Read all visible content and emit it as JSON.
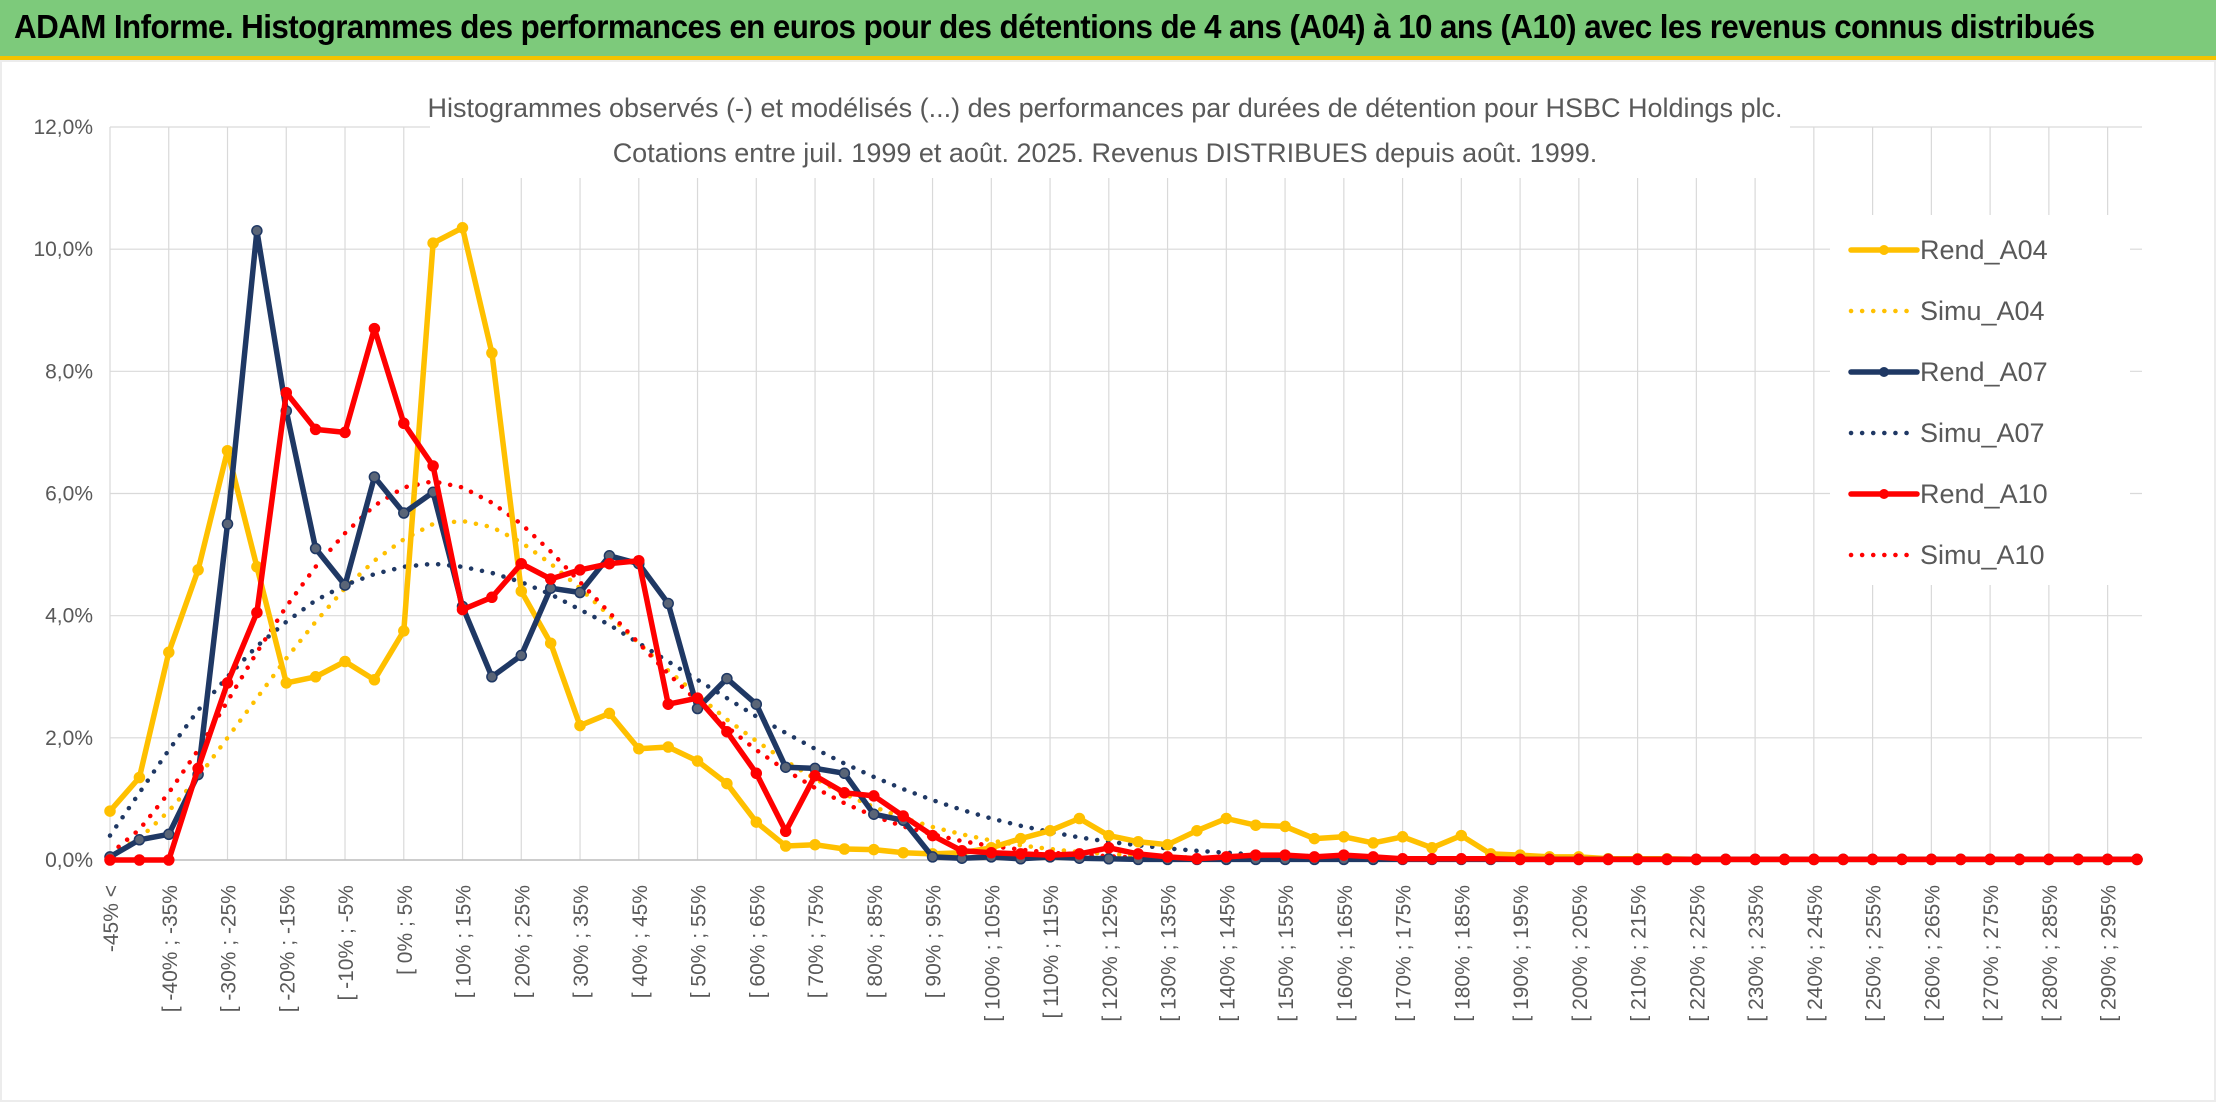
{
  "banner": {
    "title": "ADAM Informe. Histogrammes des performances en euros pour des détentions de 4 ans (A04) à 10 ans (A10) avec les revenus connus distribués"
  },
  "colors": {
    "banner_bg": "#7dca7b",
    "banner_accent": "#f3c300",
    "A04": "#ffc000",
    "A07": "#1f3864",
    "A10": "#ff0000",
    "grid": "#d9d9d9"
  },
  "chart_data": {
    "type": "line",
    "title": "Histogrammes observés (-) et modélisés (...) des performances par durées de détention pour HSBC Holdings plc.",
    "subtitle": "Cotations entre juil. 1999 et août. 2025. Revenus DISTRIBUES depuis août. 1999.",
    "ylim": [
      0,
      12
    ],
    "y_ticks": [
      "0,0%",
      "2,0%",
      "4,0%",
      "6,0%",
      "8,0%",
      "10,0%",
      "12,0%"
    ],
    "grid": true,
    "legend_position": "right",
    "x_labels": [
      "-45% <",
      "[ -40% ; -35%",
      "[ -30% ; -25%",
      "[ -20% ; -15%",
      "[ -10% ; -5%",
      "[ 0% ; 5%",
      "[ 10% ; 15%",
      "[ 20% ; 25%",
      "[ 30% ; 35%",
      "[ 40% ; 45%",
      "[ 50% ; 55%",
      "[ 60% ; 65%",
      "[ 70% ; 75%",
      "[ 80% ; 85%",
      "[ 90% ; 95%",
      "[ 100% ; 105%",
      "[ 110% ; 115%",
      "[ 120% ; 125%",
      "[ 130% ; 135%",
      "[ 140% ; 145%",
      "[ 150% ; 155%",
      "[ 160% ; 165%",
      "[ 170% ; 175%",
      "[ 180% ; 185%",
      "[ 190% ; 195%",
      "[ 200% ; 205%",
      "[ 210% ; 215%",
      "[ 220% ; 225%",
      "[ 230% ; 235%",
      "[ 240% ; 245%",
      "[ 250% ; 255%",
      "[ 260% ; 265%",
      "[ 270% ; 275%",
      "[ 280% ; 285%",
      "[ 290% ; 295%"
    ],
    "series": [
      {
        "name": "Rend_A04",
        "style": "solid",
        "color": "#ffc000",
        "values": [
          0.8,
          1.35,
          3.4,
          4.75,
          6.7,
          4.8,
          2.9,
          3.0,
          3.25,
          2.95,
          3.75,
          10.1,
          10.35,
          8.3,
          4.4,
          3.55,
          2.2,
          2.4,
          1.82,
          1.85,
          1.62,
          1.25,
          0.62,
          0.23,
          0.25,
          0.18,
          0.17,
          0.12,
          0.1,
          0.12,
          0.2,
          0.35,
          0.48,
          0.68,
          0.4,
          0.3,
          0.25,
          0.48,
          0.68,
          0.57,
          0.55,
          0.35,
          0.38,
          0.28,
          0.38,
          0.2,
          0.4,
          0.1,
          0.08,
          0.05,
          0.05,
          0.02,
          0.02,
          0.02,
          0.01,
          0.01,
          0.01,
          0.01,
          0.01,
          0.01,
          0.01,
          0.01,
          0.01,
          0.01,
          0.01,
          0.01,
          0.01,
          0.01,
          0.01,
          0.01
        ]
      },
      {
        "name": "Simu_A04",
        "style": "dotted",
        "color": "#ffc000",
        "values": [
          0.1,
          0.35,
          0.8,
          1.35,
          2.0,
          2.65,
          3.3,
          3.9,
          4.45,
          4.9,
          5.25,
          5.5,
          5.55,
          5.45,
          5.2,
          4.85,
          4.45,
          4.0,
          3.55,
          3.1,
          2.7,
          2.3,
          1.95,
          1.62,
          1.33,
          1.08,
          0.87,
          0.69,
          0.54,
          0.42,
          0.32,
          0.24,
          0.18,
          0.13,
          0.1,
          0.07,
          0.05,
          0.04,
          0.03,
          0.02,
          0.02,
          0.01,
          0.01,
          0.01,
          0.01,
          0.01,
          0.01,
          0.01,
          0.01,
          0.01,
          0.01,
          0.01,
          0.01,
          0.01,
          0.01,
          0.01,
          0.01,
          0.01,
          0.01,
          0.01,
          0.01,
          0.01,
          0.01,
          0.01,
          0.01,
          0.01,
          0.01,
          0.01,
          0.01,
          0.01
        ]
      },
      {
        "name": "Rend_A07",
        "style": "solid",
        "color": "#1f3864",
        "values": [
          0.05,
          0.33,
          0.42,
          1.4,
          5.5,
          10.3,
          7.35,
          5.1,
          4.5,
          6.27,
          5.68,
          6.02,
          4.15,
          3.0,
          3.35,
          4.45,
          4.38,
          4.98,
          4.85,
          4.2,
          2.48,
          2.97,
          2.55,
          1.52,
          1.5,
          1.42,
          0.75,
          0.65,
          0.05,
          0.03,
          0.05,
          0.02,
          0.05,
          0.03,
          0.02,
          0.01,
          0.01,
          0.01,
          0.01,
          0.01,
          0.01,
          0.01,
          0.01,
          0.01,
          0.01,
          0.01,
          0.01,
          0.01,
          0.01,
          0.01,
          0.01,
          0.01,
          0.01,
          0.01,
          0.01,
          0.01,
          0.01,
          0.01,
          0.01,
          0.01,
          0.01,
          0.01,
          0.01,
          0.01,
          0.01,
          0.01,
          0.01,
          0.01,
          0.01,
          0.01
        ]
      },
      {
        "name": "Simu_A07",
        "style": "dotted",
        "color": "#1f3864",
        "values": [
          0.4,
          1.1,
          1.8,
          2.45,
          3.0,
          3.5,
          3.9,
          4.25,
          4.5,
          4.68,
          4.8,
          4.85,
          4.8,
          4.7,
          4.55,
          4.35,
          4.1,
          3.85,
          3.55,
          3.25,
          2.95,
          2.65,
          2.35,
          2.08,
          1.82,
          1.58,
          1.36,
          1.16,
          0.98,
          0.82,
          0.68,
          0.56,
          0.46,
          0.37,
          0.3,
          0.24,
          0.19,
          0.15,
          0.12,
          0.09,
          0.07,
          0.06,
          0.04,
          0.03,
          0.03,
          0.02,
          0.02,
          0.01,
          0.01,
          0.01,
          0.01,
          0.01,
          0.01,
          0.01,
          0.01,
          0.01,
          0.01,
          0.01,
          0.01,
          0.01,
          0.01,
          0.01,
          0.01,
          0.01,
          0.01,
          0.01,
          0.01,
          0.01,
          0.01,
          0.01
        ]
      },
      {
        "name": "Rend_A10",
        "style": "solid",
        "color": "#ff0000",
        "values": [
          0.0,
          0.0,
          0.0,
          1.5,
          2.9,
          4.05,
          7.65,
          7.05,
          7.0,
          8.7,
          7.15,
          6.45,
          4.1,
          4.3,
          4.85,
          4.6,
          4.75,
          4.85,
          4.9,
          2.55,
          2.65,
          2.1,
          1.42,
          0.47,
          1.38,
          1.1,
          1.05,
          0.72,
          0.4,
          0.15,
          0.12,
          0.1,
          0.08,
          0.1,
          0.2,
          0.1,
          0.05,
          0.02,
          0.05,
          0.08,
          0.08,
          0.05,
          0.08,
          0.05,
          0.02,
          0.02,
          0.02,
          0.02,
          0.01,
          0.01,
          0.01,
          0.01,
          0.01,
          0.01,
          0.01,
          0.01,
          0.01,
          0.01,
          0.01,
          0.01,
          0.01,
          0.01,
          0.01,
          0.01,
          0.01,
          0.01,
          0.01,
          0.01,
          0.01,
          0.01
        ]
      },
      {
        "name": "Simu_A10",
        "style": "dotted",
        "color": "#ff0000",
        "values": [
          0.1,
          0.5,
          1.1,
          1.8,
          2.6,
          3.4,
          4.15,
          4.8,
          5.35,
          5.8,
          6.1,
          6.2,
          6.1,
          5.85,
          5.5,
          5.05,
          4.55,
          4.05,
          3.55,
          3.05,
          2.6,
          2.18,
          1.8,
          1.47,
          1.18,
          0.93,
          0.72,
          0.55,
          0.42,
          0.31,
          0.23,
          0.17,
          0.12,
          0.09,
          0.06,
          0.04,
          0.03,
          0.02,
          0.02,
          0.01,
          0.01,
          0.01,
          0.01,
          0.01,
          0.01,
          0.01,
          0.01,
          0.01,
          0.01,
          0.01,
          0.01,
          0.01,
          0.01,
          0.01,
          0.01,
          0.01,
          0.01,
          0.01,
          0.01,
          0.01,
          0.01,
          0.01,
          0.01,
          0.01,
          0.01,
          0.01,
          0.01,
          0.01,
          0.01,
          0.01
        ]
      }
    ]
  }
}
